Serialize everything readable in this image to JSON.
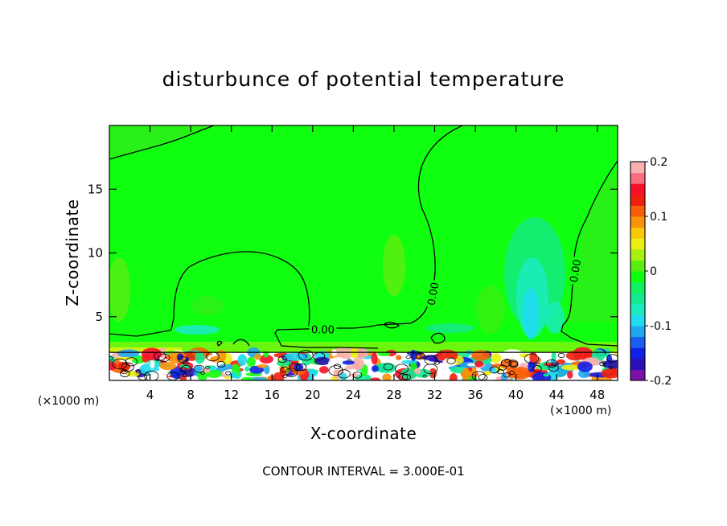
{
  "chart_data": {
    "type": "heatmap",
    "title": "disturbunce of potential temperature",
    "xlabel": "X-coordinate",
    "ylabel": "Z-coordinate",
    "x_unit_left": "(×1000 m)",
    "x_unit_right": "(×1000 m)",
    "xlim": [
      0,
      50
    ],
    "ylim": [
      0,
      20
    ],
    "x_ticks": [
      4,
      8,
      12,
      16,
      20,
      24,
      28,
      32,
      36,
      40,
      44,
      48
    ],
    "y_ticks": [
      5,
      10,
      15
    ],
    "contour_label": "0.00",
    "contour_interval_text": "CONTOUR INTERVAL = 3.000E-01",
    "colorbar": {
      "min": -0.2,
      "max": 0.2,
      "tick_labels": [
        "0.2",
        "0.1",
        "0",
        "-0.1",
        "-0.2"
      ],
      "tick_values": [
        0.2,
        0.1,
        0,
        -0.1,
        -0.2
      ],
      "colors": [
        "#7a10a8",
        "#2a0fb8",
        "#1020e6",
        "#1a5ff0",
        "#1fa8f0",
        "#20dcee",
        "#1cecc0",
        "#14e890",
        "#10f060",
        "#10ff10",
        "#58ef10",
        "#a8f010",
        "#ecf010",
        "#f8c808",
        "#f89408",
        "#f86008",
        "#f02010",
        "#f8102a",
        "#f87080",
        "#f8b0b0"
      ],
      "background_color": "#10ff10"
    },
    "contour_labels_positions": [
      {
        "x": 21,
        "z": 4.0
      },
      {
        "x": 31.8,
        "z": 6.8
      },
      {
        "x": 45.8,
        "z": 8.6
      }
    ]
  }
}
